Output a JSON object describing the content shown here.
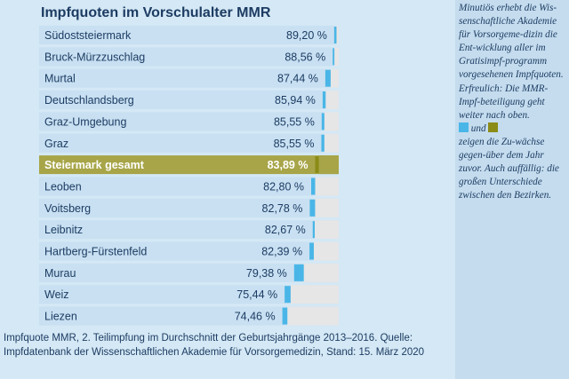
{
  "title": "Impfquoten im Vorschulalter MMR",
  "colors": {
    "background": "#d4e8f5",
    "row": "#c8e0f2",
    "row_highlight": "#a7a548",
    "bar_track": "#e6e6e6",
    "increase_blue": "#4ab6e7",
    "increase_olive": "#8b8c17",
    "text": "#1d3c63"
  },
  "chart_data": {
    "type": "bar",
    "title": "Impfquoten im Vorschulalter MMR",
    "unit": "%",
    "xlim": [
      0,
      100
    ],
    "categories": [
      "Südoststeiermark",
      "Bruck-Mürzzuschlag",
      "Murtal",
      "Deutschlandsberg",
      "Graz-Umgebung",
      "Graz",
      "Steiermark gesamt",
      "Leoben",
      "Voitsberg",
      "Leibnitz",
      "Hartberg-Fürstenfeld",
      "Murau",
      "Weiz",
      "Liezen"
    ],
    "value_labels": [
      "89,20 %",
      "88,56 %",
      "87,44 %",
      "85,94 %",
      "85,55 %",
      "85,55 %",
      "83,89 %",
      "82,80 %",
      "82,78 %",
      "82,67 %",
      "82,39 %",
      "79,38 %",
      "75,44 %",
      "74,46 %"
    ],
    "values": [
      89.2,
      88.56,
      87.44,
      85.94,
      85.55,
      85.55,
      83.89,
      82.8,
      82.78,
      82.67,
      82.39,
      79.38,
      75.44,
      74.46
    ],
    "increase_to_previous_year": [
      0.7,
      0.5,
      1.6,
      0.9,
      0.8,
      0.9,
      1.1,
      1.2,
      1.6,
      0.6,
      1.3,
      2.9,
      1.8,
      1.5
    ],
    "highlight_index": 6
  },
  "caption": "Impfquote MMR, 2. Teilimpfung im Durchschnitt der Geburtsjahrgänge 2013–2016. Quelle: Impfdatenbank der Wissenschaftlichen Akademie für Vorsorgemedizin, Stand: 15. März 2020",
  "sidebar": {
    "text_1": "Minutiös erhebt die Wis-senschaftliche Akademie für Vorsorgeme-dizin die Ent-wicklung aller im Gratisimpf-programm vorgesehenen Impfquoten. Erfreulich: Die MMR-Impf-beteiligung geht weiter nach oben.",
    "legend_und": "und",
    "text_2": "zeigen die Zu-wächse gegen-über dem Jahr zuvor. Auch auffällig: die großen Unterschiede zwischen den Bezirken."
  }
}
